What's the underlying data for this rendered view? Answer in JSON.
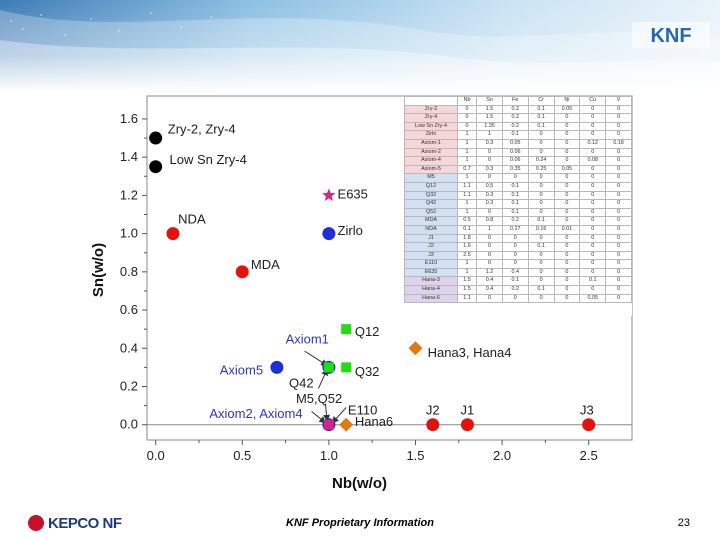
{
  "brand": {
    "logo_text": "KEPCO NF",
    "corner_logo": "KNF"
  },
  "footer": {
    "text": "KNF Proprietary Information",
    "page_number": "23"
  },
  "colors": {
    "black": "#000000",
    "red": "#e3120b",
    "blue": "#1f2fd6",
    "magenta": "#d6257d",
    "green": "#22dd11",
    "orange": "#e07b12",
    "label_black": "#202020",
    "label_blue": "#2b37c4",
    "table_pink": "#f6d6d6",
    "table_blue": "#d3e0f3",
    "table_purple": "#ddd3ec"
  },
  "chart_data": {
    "type": "scatter",
    "title": "",
    "xlabel": "Nb(w/o)",
    "ylabel": "Sn(w/o)",
    "xlim": [
      -0.05,
      2.75
    ],
    "ylim": [
      -0.08,
      1.72
    ],
    "xticks": [
      "0.0",
      "0.5",
      "1.0",
      "1.5",
      "2.0",
      "2.5"
    ],
    "yticks": [
      "0.0",
      "0.2",
      "0.4",
      "0.6",
      "0.8",
      "1.0",
      "1.2",
      "1.4",
      "1.6"
    ],
    "points": [
      {
        "x": 0.0,
        "y": 1.5,
        "shape": "circle",
        "color": "black"
      },
      {
        "x": 0.0,
        "y": 1.35,
        "shape": "circle",
        "color": "black"
      },
      {
        "x": 1.0,
        "y": 1.2,
        "shape": "star",
        "color": "magenta"
      },
      {
        "x": 0.1,
        "y": 1.0,
        "shape": "circle",
        "color": "red"
      },
      {
        "x": 1.0,
        "y": 1.0,
        "shape": "circle",
        "color": "blue"
      },
      {
        "x": 0.5,
        "y": 0.8,
        "shape": "circle",
        "color": "red"
      },
      {
        "x": 1.1,
        "y": 0.5,
        "shape": "square",
        "color": "green"
      },
      {
        "x": 1.5,
        "y": 0.4,
        "shape": "diamond",
        "color": "orange"
      },
      {
        "x": 0.7,
        "y": 0.3,
        "shape": "circle",
        "color": "blue"
      },
      {
        "x": 1.0,
        "y": 0.3,
        "shape": "circle",
        "color": "blue"
      },
      {
        "x": 1.0,
        "y": 0.3,
        "shape": "square",
        "color": "green"
      },
      {
        "x": 1.1,
        "y": 0.3,
        "shape": "square",
        "color": "green"
      },
      {
        "x": 1.0,
        "y": 0.0,
        "shape": "circle",
        "color": "blue"
      },
      {
        "x": 1.0,
        "y": 0.0,
        "shape": "square",
        "color": "magenta"
      },
      {
        "x": 1.1,
        "y": 0.0,
        "shape": "diamond",
        "color": "orange"
      },
      {
        "x": 1.6,
        "y": 0.0,
        "shape": "circle",
        "color": "red"
      },
      {
        "x": 1.8,
        "y": 0.0,
        "shape": "circle",
        "color": "red"
      },
      {
        "x": 2.5,
        "y": 0.0,
        "shape": "circle",
        "color": "red"
      }
    ],
    "labels": [
      {
        "text": "Zry-2, Zry-4",
        "x": 0.07,
        "y": 1.55,
        "color": "label_black"
      },
      {
        "text": "Low Sn Zry-4",
        "x": 0.08,
        "y": 1.39,
        "color": "label_black"
      },
      {
        "text": "E635",
        "x": 1.05,
        "y": 1.21,
        "color": "label_black"
      },
      {
        "text": "NDA",
        "x": 0.13,
        "y": 1.08,
        "color": "label_black"
      },
      {
        "text": "Zirlo",
        "x": 1.05,
        "y": 1.02,
        "color": "label_black"
      },
      {
        "text": "MDA",
        "x": 0.55,
        "y": 0.84,
        "color": "label_black"
      },
      {
        "text": "Q12",
        "x": 1.15,
        "y": 0.49,
        "color": "label_black"
      },
      {
        "text": "Axiom1",
        "x": 0.75,
        "y": 0.45,
        "color": "label_blue"
      },
      {
        "text": "Hana3, Hana4",
        "x": 1.57,
        "y": 0.38,
        "color": "label_black"
      },
      {
        "text": "Axiom5",
        "x": 0.37,
        "y": 0.29,
        "color": "label_blue"
      },
      {
        "text": "Q32",
        "x": 1.15,
        "y": 0.28,
        "color": "label_black"
      },
      {
        "text": "Q42",
        "x": 0.77,
        "y": 0.22,
        "color": "label_black"
      },
      {
        "text": "M5,Q52",
        "x": 0.81,
        "y": 0.14,
        "color": "label_black"
      },
      {
        "text": "Axiom2, Axiom4",
        "x": 0.31,
        "y": 0.06,
        "color": "label_blue"
      },
      {
        "text": "E110",
        "x": 1.11,
        "y": 0.08,
        "color": "label_black"
      },
      {
        "text": "Hana6",
        "x": 1.15,
        "y": 0.02,
        "color": "label_black"
      },
      {
        "text": "J2",
        "x": 1.56,
        "y": 0.08,
        "color": "label_black"
      },
      {
        "text": "J1",
        "x": 1.76,
        "y": 0.08,
        "color": "label_black"
      },
      {
        "text": "J3",
        "x": 2.45,
        "y": 0.08,
        "color": "label_black"
      }
    ],
    "arrows": [
      {
        "from": [
          0.86,
          0.385
        ],
        "to": [
          0.99,
          0.31
        ]
      },
      {
        "from": [
          0.94,
          0.19
        ],
        "to": [
          0.99,
          0.29
        ]
      },
      {
        "from": [
          0.98,
          0.11
        ],
        "to": [
          0.99,
          0.02
        ]
      },
      {
        "from": [
          0.9,
          0.07
        ],
        "to": [
          0.98,
          0.01
        ]
      },
      {
        "from": [
          1.1,
          0.09
        ],
        "to": [
          1.02,
          0.01
        ]
      }
    ],
    "table": {
      "columns": [
        "",
        "Nb",
        "Sn",
        "Fe",
        "Cr",
        "Ni",
        "Cu",
        "V"
      ],
      "rows": [
        {
          "group": "pink",
          "cells": [
            "Zry-2",
            "0",
            "1.5",
            "0.2",
            "0.1",
            "0.05",
            "0",
            "0"
          ]
        },
        {
          "group": "pink",
          "cells": [
            "Zry-4",
            "0",
            "1.5",
            "0.2",
            "0.1",
            "0",
            "0",
            "0"
          ]
        },
        {
          "group": "pink",
          "cells": [
            "Low Sn Zry-4",
            "0",
            "1.35",
            "0.2",
            "0.1",
            "0",
            "0",
            "0"
          ]
        },
        {
          "group": "pink",
          "cells": [
            "Zirlo",
            "1",
            "1",
            "0.1",
            "0",
            "0",
            "0",
            "0"
          ]
        },
        {
          "group": "pink",
          "cells": [
            "Axiom-1",
            "1",
            "0.3",
            "0.05",
            "0",
            "0",
            "0.12",
            "0.18"
          ]
        },
        {
          "group": "pink",
          "cells": [
            "Axiom-2",
            "1",
            "0",
            "0.06",
            "0",
            "0",
            "0",
            "0"
          ]
        },
        {
          "group": "pink",
          "cells": [
            "Axiom-4",
            "1",
            "0",
            "0.06",
            "0.24",
            "0",
            "0.08",
            "0"
          ]
        },
        {
          "group": "pink",
          "cells": [
            "Axiom-5",
            "0.7",
            "0.3",
            "0.35",
            "0.25",
            "0.05",
            "0",
            "0"
          ]
        },
        {
          "group": "blue",
          "cells": [
            "M5",
            "1",
            "0",
            "0",
            "0",
            "0",
            "0",
            "0"
          ]
        },
        {
          "group": "blue",
          "cells": [
            "Q12",
            "1.1",
            "0.5",
            "0.1",
            "0",
            "0",
            "0",
            "0"
          ]
        },
        {
          "group": "blue",
          "cells": [
            "Q32",
            "1.1",
            "0.3",
            "0.1",
            "0",
            "0",
            "0",
            "0"
          ]
        },
        {
          "group": "blue",
          "cells": [
            "Q42",
            "1",
            "0.3",
            "0.1",
            "0",
            "0",
            "0",
            "0"
          ]
        },
        {
          "group": "blue",
          "cells": [
            "Q52",
            "1",
            "0",
            "0.1",
            "0",
            "0",
            "0",
            "0"
          ]
        },
        {
          "group": "blue",
          "cells": [
            "MDA",
            "0.5",
            "0.8",
            "0.2",
            "0.1",
            "0",
            "0",
            "0"
          ]
        },
        {
          "group": "blue",
          "cells": [
            "NDA",
            "0.1",
            "1",
            "0.27",
            "0.16",
            "0.01",
            "0",
            "0"
          ]
        },
        {
          "group": "blue",
          "cells": [
            "J1",
            "1.8",
            "0",
            "0",
            "0",
            "0",
            "0",
            "0"
          ]
        },
        {
          "group": "blue",
          "cells": [
            "J2",
            "1.6",
            "0",
            "0",
            "0.1",
            "0",
            "0",
            "0"
          ]
        },
        {
          "group": "blue",
          "cells": [
            "J3",
            "2.5",
            "0",
            "0",
            "0",
            "0",
            "0",
            "0"
          ]
        },
        {
          "group": "blue",
          "cells": [
            "E110",
            "1",
            "0",
            "0",
            "0",
            "0",
            "0",
            "0"
          ]
        },
        {
          "group": "blue",
          "cells": [
            "E635",
            "1",
            "1.2",
            "0.4",
            "0",
            "0",
            "0",
            "0"
          ]
        },
        {
          "group": "purple",
          "cells": [
            "Hana-3",
            "1.5",
            "0.4",
            "0.1",
            "0",
            "0",
            "0.1",
            "0"
          ]
        },
        {
          "group": "purple",
          "cells": [
            "Hana-4",
            "1.5",
            "0.4",
            "0.2",
            "0.1",
            "0",
            "0",
            "0"
          ]
        },
        {
          "group": "purple",
          "cells": [
            "Hana-6",
            "1.1",
            "0",
            "0",
            "0",
            "0",
            "0.05",
            "0"
          ]
        }
      ]
    }
  }
}
